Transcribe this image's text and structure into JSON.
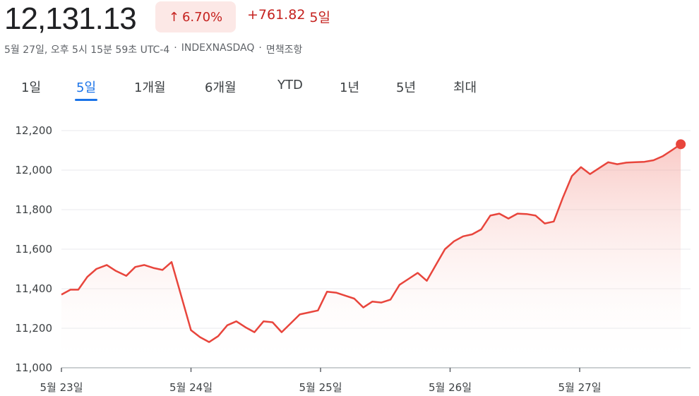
{
  "header": {
    "price": "12,131.13",
    "change_percent": "6.70%",
    "change_value": "+761.82",
    "change_period": "5일",
    "meta": {
      "datetime": "5월 27일, 오후 5시 15분 59초 UTC-4",
      "exchange": "INDEXNASDAQ",
      "disclaimer": "면책조항"
    },
    "up_arrow_icon": "arrow-up-icon"
  },
  "tabs": [
    {
      "label": "1일",
      "active": false
    },
    {
      "label": "5일",
      "active": true
    },
    {
      "label": "1개월",
      "active": false
    },
    {
      "label": "6개월",
      "active": false
    },
    {
      "label": "YTD",
      "active": false
    },
    {
      "label": "1년",
      "active": false
    },
    {
      "label": "5년",
      "active": false
    },
    {
      "label": "최대",
      "active": false
    }
  ],
  "colors": {
    "line": "#e8453c",
    "fill_top": "#f28b82",
    "grid": "#e8eaed",
    "down_text": "#c5221f"
  },
  "chart_data": {
    "type": "area",
    "ylim": [
      11000,
      12200
    ],
    "y_ticks": [
      "11,000",
      "11,200",
      "11,400",
      "11,600",
      "11,800",
      "12,000",
      "12,200"
    ],
    "y_tick_values": [
      11000,
      11200,
      11400,
      11600,
      11800,
      12000,
      12200
    ],
    "x_ticks": [
      "5월 23일",
      "5월 24일",
      "5월 25일",
      "5월 26일",
      "5월 27일"
    ],
    "xlim": [
      0,
      4.85
    ],
    "series": [
      {
        "values": [
          [
            0.0,
            11370
          ],
          [
            0.07,
            11395
          ],
          [
            0.13,
            11395
          ],
          [
            0.2,
            11460
          ],
          [
            0.27,
            11500
          ],
          [
            0.35,
            11520
          ],
          [
            0.42,
            11490
          ],
          [
            0.5,
            11465
          ],
          [
            0.57,
            11510
          ],
          [
            0.64,
            11520
          ],
          [
            0.71,
            11505
          ],
          [
            0.78,
            11495
          ],
          [
            0.85,
            11535
          ],
          [
            1.0,
            11190
          ],
          [
            1.07,
            11155
          ],
          [
            1.14,
            11130
          ],
          [
            1.21,
            11160
          ],
          [
            1.28,
            11215
          ],
          [
            1.35,
            11235
          ],
          [
            1.42,
            11205
          ],
          [
            1.49,
            11180
          ],
          [
            1.56,
            11235
          ],
          [
            1.63,
            11230
          ],
          [
            1.7,
            11180
          ],
          [
            1.77,
            11225
          ],
          [
            1.84,
            11270
          ],
          [
            1.91,
            11280
          ],
          [
            1.98,
            11290
          ],
          [
            2.05,
            11385
          ],
          [
            2.12,
            11380
          ],
          [
            2.19,
            11365
          ],
          [
            2.26,
            11350
          ],
          [
            2.33,
            11305
          ],
          [
            2.4,
            11335
          ],
          [
            2.47,
            11330
          ],
          [
            2.54,
            11345
          ],
          [
            2.61,
            11420
          ],
          [
            2.68,
            11450
          ],
          [
            2.75,
            11480
          ],
          [
            2.82,
            11440
          ],
          [
            2.89,
            11520
          ],
          [
            2.96,
            11600
          ],
          [
            3.03,
            11640
          ],
          [
            3.1,
            11665
          ],
          [
            3.17,
            11675
          ],
          [
            3.24,
            11700
          ],
          [
            3.31,
            11770
          ],
          [
            3.38,
            11780
          ],
          [
            3.45,
            11755
          ],
          [
            3.52,
            11780
          ],
          [
            3.59,
            11778
          ],
          [
            3.66,
            11770
          ],
          [
            3.73,
            11730
          ],
          [
            3.8,
            11740
          ],
          [
            3.87,
            11860
          ],
          [
            3.94,
            11970
          ],
          [
            4.01,
            12015
          ],
          [
            4.08,
            11980
          ],
          [
            4.15,
            12010
          ],
          [
            4.22,
            12040
          ],
          [
            4.29,
            12030
          ],
          [
            4.36,
            12038
          ],
          [
            4.43,
            12040
          ],
          [
            4.5,
            12042
          ],
          [
            4.57,
            12050
          ],
          [
            4.64,
            12070
          ],
          [
            4.71,
            12100
          ],
          [
            4.78,
            12131
          ]
        ]
      }
    ]
  }
}
